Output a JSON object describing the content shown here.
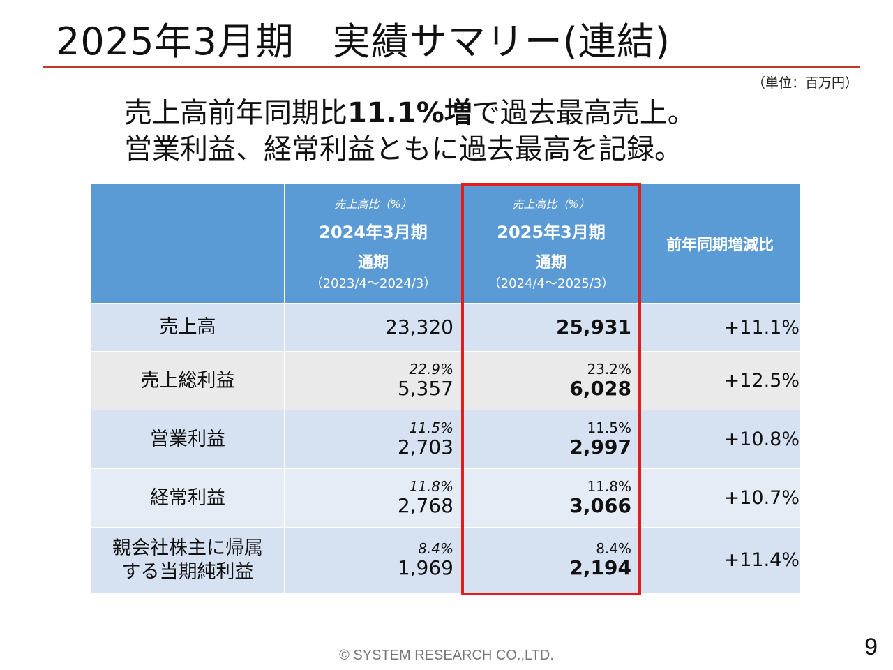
{
  "title": "2025年3月期　実績サマリー(連結)",
  "unit": "（単位：百万円）",
  "headline": {
    "line1_pre": "売上高前年同期比",
    "line1_bold": "11.1%増",
    "line1_post": "で過去最高売上。",
    "line2": "営業利益、経常利益ともに過去最高を記録。"
  },
  "table": {
    "columns": [
      {
        "ratio_note": "売上高比（%）",
        "name": "2024年3月期",
        "type": "通期",
        "range": "（2023/4～2024/3）"
      },
      {
        "ratio_note": "売上高比（%）",
        "name": "2025年3月期",
        "type": "通期",
        "range": "（2024/4～2025/3）"
      }
    ],
    "yoy_header": "前年同期増減比",
    "rows": [
      {
        "label": "売上高",
        "prev_ratio": "",
        "prev": "23,320",
        "cur_ratio": "",
        "cur": "25,931",
        "yoy": "+11.1%"
      },
      {
        "label": "売上総利益",
        "prev_ratio": "22.9%",
        "prev": "5,357",
        "cur_ratio": "23.2%",
        "cur": "6,028",
        "yoy": "+12.5%"
      },
      {
        "label": "営業利益",
        "prev_ratio": "11.5%",
        "prev": "2,703",
        "cur_ratio": "11.5%",
        "cur": "2,997",
        "yoy": "+10.8%"
      },
      {
        "label": "経常利益",
        "prev_ratio": "11.8%",
        "prev": "2,768",
        "cur_ratio": "11.8%",
        "cur": "3,066",
        "yoy": "+10.7%"
      },
      {
        "label_line1": "親会社株主に帰属",
        "label_line2": "する当期純利益",
        "prev_ratio": "8.4%",
        "prev": "1,969",
        "cur_ratio": "8.4%",
        "cur": "2,194",
        "yoy": "+11.4%"
      }
    ]
  },
  "highlight_color": "#e31c1c",
  "header_color": "#5b9bd5",
  "footer": "© SYSTEM RESEARCH CO.,LTD.",
  "page_number": "9"
}
